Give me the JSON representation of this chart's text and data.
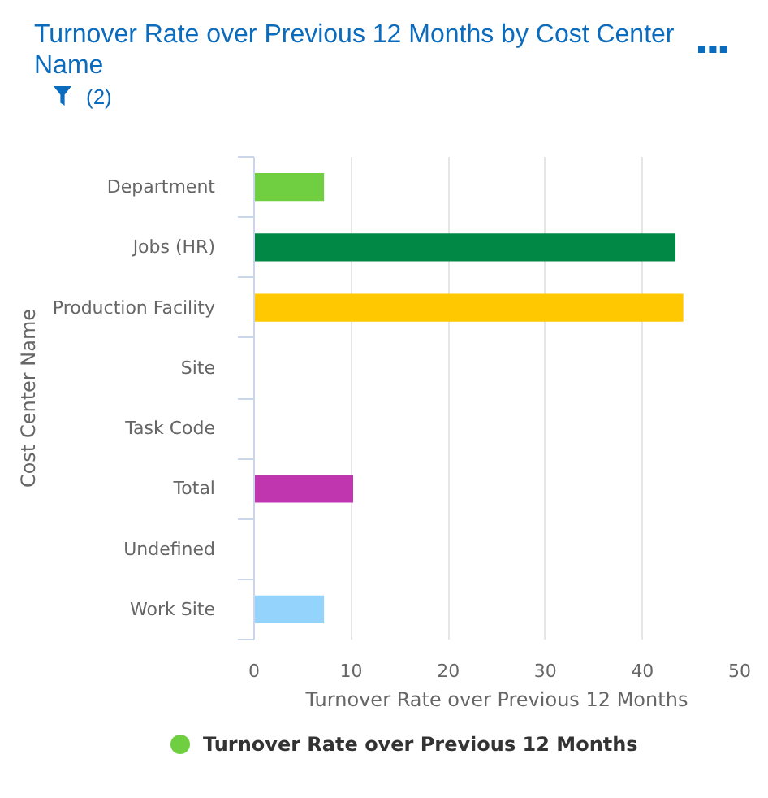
{
  "chart_data": {
    "type": "bar",
    "orientation": "horizontal",
    "title": "Turnover Rate over Previous 12 Months by Cost Center Name",
    "annotations": [
      "(2)"
    ],
    "xlabel": "Turnover Rate over Previous 12 Months",
    "ylabel": "Cost Center Name",
    "categories": [
      "Department",
      "Jobs (HR)",
      "Production Facility",
      "Site",
      "Task Code",
      "Total",
      "Undefined",
      "Work Site"
    ],
    "series": [
      {
        "name": "Turnover Rate over Previous 12 Months",
        "color": "#6fcf40",
        "colors": [
          "#6fcf40",
          "#008844",
          "#ffc800",
          null,
          null,
          "#bf36af",
          null,
          "#94d3fb"
        ],
        "values": [
          7.2,
          43.4,
          44.2,
          0,
          0,
          10.2,
          0,
          7.2
        ]
      }
    ],
    "xlim": [
      0,
      50
    ],
    "xticks": [
      0,
      10,
      20,
      30,
      40,
      50
    ],
    "grid": "x",
    "legend": "bottom"
  }
}
